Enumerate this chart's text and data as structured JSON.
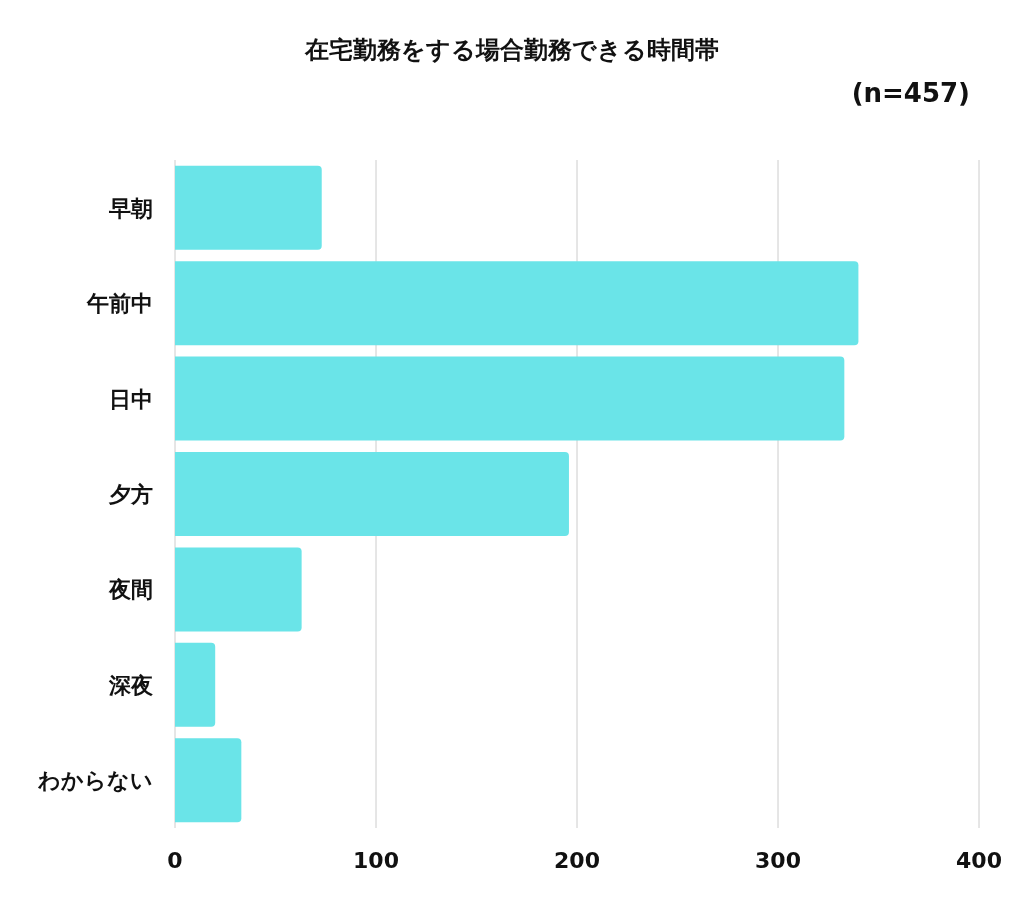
{
  "chart_data": {
    "type": "bar",
    "orientation": "horizontal",
    "title": "在宅勤務をする場合勤務できる時間帯",
    "subtitle": "(n=457)",
    "categories": [
      "早朝",
      "午前中",
      "日中",
      "夕方",
      "夜間",
      "深夜",
      "わからない"
    ],
    "values": [
      73,
      340,
      333,
      196,
      63,
      20,
      33
    ],
    "color": "#6ae4e8",
    "xlim": [
      0,
      400
    ],
    "xticks": [
      0,
      100,
      200,
      300,
      400
    ],
    "grid": "x"
  }
}
